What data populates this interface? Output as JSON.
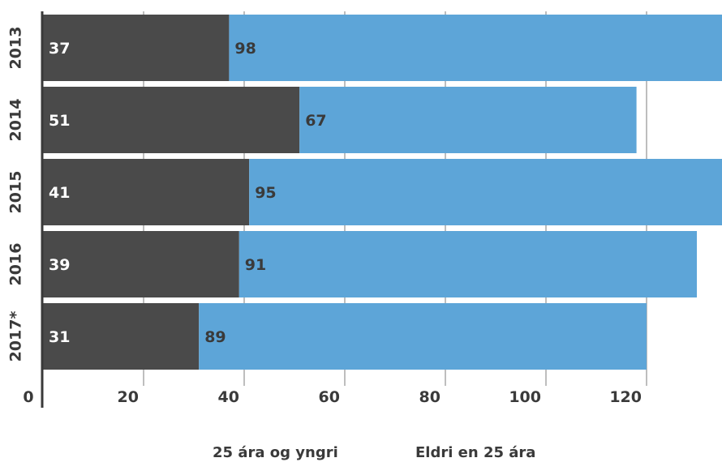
{
  "chart_data": {
    "type": "bar",
    "orientation": "horizontal",
    "stacked": true,
    "categories": [
      "2013",
      "2014",
      "2015",
      "2016",
      "2017*"
    ],
    "series": [
      {
        "name": "25 ára og yngri",
        "color": "#4a4a4a",
        "values": [
          37,
          51,
          41,
          39,
          31
        ]
      },
      {
        "name": "Eldri en 25 ára",
        "color": "#5da5d8",
        "values": [
          98,
          67,
          95,
          91,
          89
        ]
      }
    ],
    "x_ticks": [
      0,
      20,
      40,
      60,
      80,
      100,
      120
    ],
    "xlim": [
      0,
      134
    ],
    "grid": true,
    "legend_position": "bottom"
  }
}
